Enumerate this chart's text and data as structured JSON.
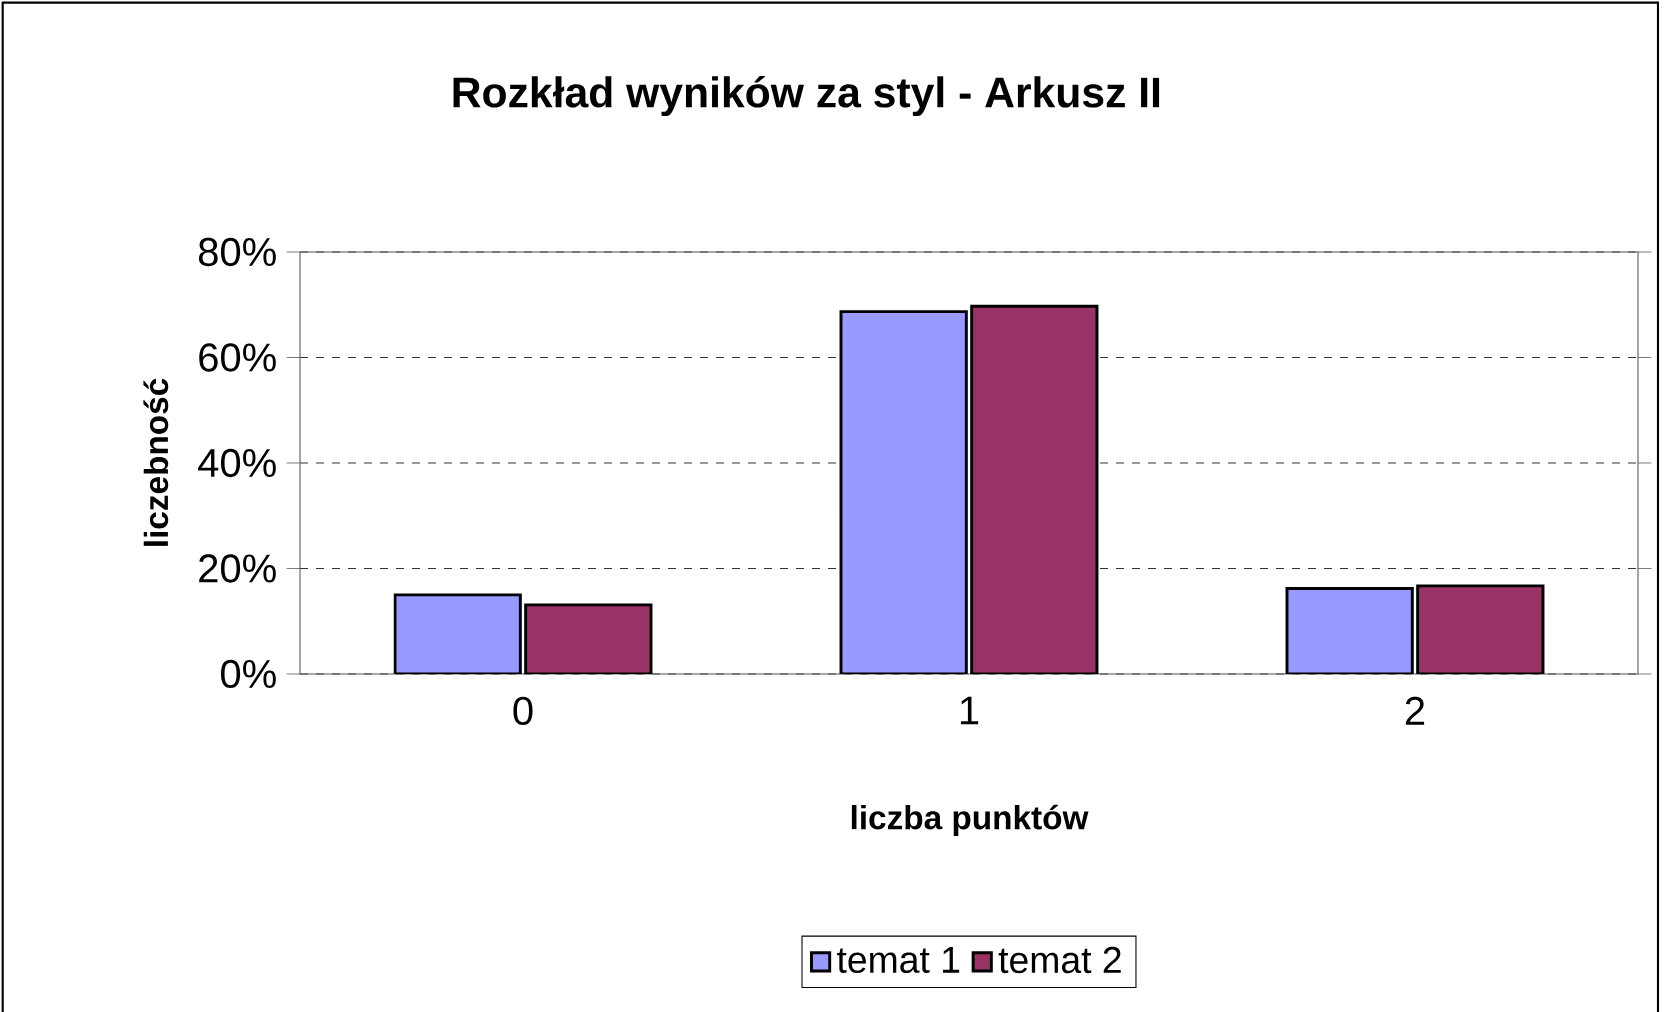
{
  "chart_data": {
    "type": "bar",
    "title": "Rozkład wyników za styl - Arkusz II",
    "xlabel": "liczba punktów",
    "ylabel": "liczebność",
    "categories": [
      "0",
      "1",
      "2"
    ],
    "series": [
      {
        "name": "temat 1",
        "color": "#9999ff",
        "values": [
          15,
          68.7,
          16.2
        ]
      },
      {
        "name": "temat 2",
        "color": "#993366",
        "values": [
          13.1,
          69.7,
          16.7
        ]
      }
    ],
    "ylim": [
      0,
      80
    ],
    "yticks": [
      {
        "value": 0,
        "label": "0%"
      },
      {
        "value": 20,
        "label": "20%"
      },
      {
        "value": 40,
        "label": "40%"
      },
      {
        "value": 60,
        "label": "60%"
      },
      {
        "value": 80,
        "label": "80%"
      }
    ],
    "grid": "y",
    "legend": "bottom"
  }
}
